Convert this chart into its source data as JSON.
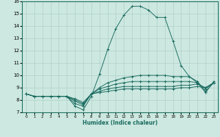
{
  "title": "",
  "xlabel": "Humidex (Indice chaleur)",
  "ylabel": "",
  "bg_color": "#cce8e0",
  "grid_color": "#b0cfc8",
  "line_color": "#1a6b60",
  "xlim": [
    -0.5,
    23.5
  ],
  "ylim": [
    7,
    16
  ],
  "yticks": [
    7,
    8,
    9,
    10,
    11,
    12,
    13,
    14,
    15,
    16
  ],
  "xticks": [
    0,
    1,
    2,
    3,
    4,
    5,
    6,
    7,
    8,
    9,
    10,
    11,
    12,
    13,
    14,
    15,
    16,
    17,
    18,
    19,
    20,
    21,
    22,
    23
  ],
  "series": [
    {
      "x": [
        0,
        1,
        2,
        3,
        4,
        5,
        6,
        7,
        8,
        9,
        10,
        11,
        12,
        13,
        14,
        15,
        16,
        17,
        18,
        19,
        20,
        21,
        22,
        23
      ],
      "y": [
        8.5,
        8.3,
        8.3,
        8.3,
        8.3,
        8.3,
        7.5,
        7.2,
        8.3,
        10.1,
        12.1,
        13.8,
        14.9,
        15.6,
        15.6,
        15.3,
        14.7,
        14.7,
        12.8,
        10.8,
        9.9,
        9.4,
        8.6,
        9.5
      ]
    },
    {
      "x": [
        0,
        1,
        2,
        3,
        4,
        5,
        6,
        7,
        8,
        9,
        10,
        11,
        12,
        13,
        14,
        15,
        16,
        17,
        18,
        19,
        20,
        21,
        22,
        23
      ],
      "y": [
        8.5,
        8.3,
        8.3,
        8.3,
        8.3,
        8.3,
        7.7,
        7.5,
        8.5,
        9.0,
        9.4,
        9.6,
        9.8,
        9.9,
        10.0,
        10.0,
        10.0,
        10.0,
        9.9,
        9.9,
        9.9,
        9.5,
        8.7,
        9.4
      ]
    },
    {
      "x": [
        0,
        1,
        2,
        3,
        4,
        5,
        6,
        7,
        8,
        9,
        10,
        11,
        12,
        13,
        14,
        15,
        16,
        17,
        18,
        19,
        20,
        21,
        22,
        23
      ],
      "y": [
        8.5,
        8.3,
        8.3,
        8.3,
        8.3,
        8.3,
        7.9,
        7.6,
        8.5,
        8.9,
        9.1,
        9.3,
        9.4,
        9.5,
        9.5,
        9.5,
        9.5,
        9.5,
        9.5,
        9.5,
        9.5,
        9.4,
        8.9,
        9.4
      ]
    },
    {
      "x": [
        0,
        1,
        2,
        3,
        4,
        5,
        6,
        7,
        8,
        9,
        10,
        11,
        12,
        13,
        14,
        15,
        16,
        17,
        18,
        19,
        20,
        21,
        22,
        23
      ],
      "y": [
        8.5,
        8.3,
        8.3,
        8.3,
        8.3,
        8.3,
        8.0,
        7.7,
        8.5,
        8.7,
        8.9,
        9.0,
        9.1,
        9.1,
        9.1,
        9.1,
        9.1,
        9.1,
        9.1,
        9.2,
        9.2,
        9.3,
        9.0,
        9.4
      ]
    },
    {
      "x": [
        0,
        1,
        2,
        3,
        4,
        5,
        6,
        7,
        8,
        9,
        10,
        11,
        12,
        13,
        14,
        15,
        16,
        17,
        18,
        19,
        20,
        21,
        22,
        23
      ],
      "y": [
        8.5,
        8.3,
        8.3,
        8.3,
        8.3,
        8.3,
        8.1,
        7.8,
        8.5,
        8.6,
        8.7,
        8.8,
        8.9,
        8.9,
        8.9,
        8.9,
        8.9,
        8.9,
        8.9,
        9.0,
        9.0,
        9.1,
        9.0,
        9.4
      ]
    }
  ]
}
